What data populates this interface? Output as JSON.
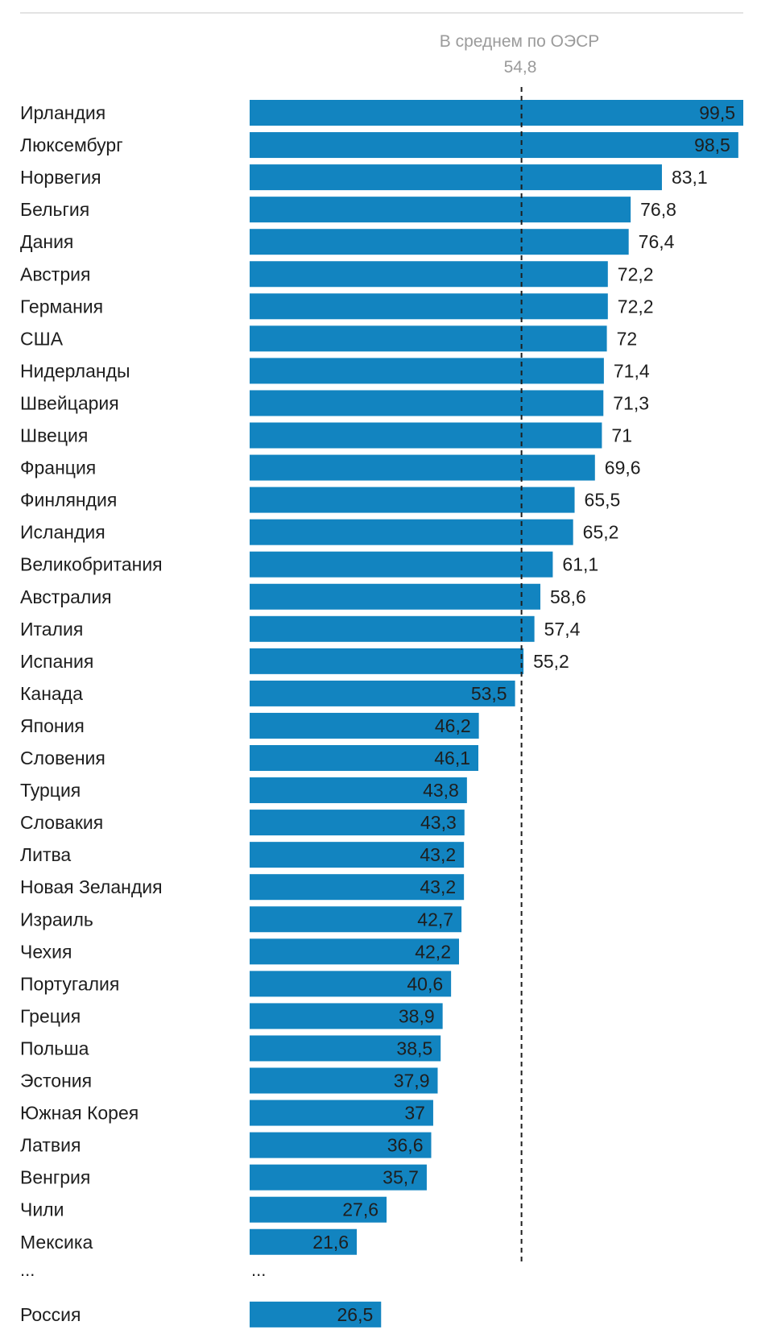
{
  "chart_data": {
    "type": "bar",
    "orientation": "horizontal",
    "title": "",
    "xlabel": "",
    "ylabel": "",
    "xlim": [
      0,
      99.5
    ],
    "grid": false,
    "bar_color": "#1284c0",
    "reference_line": {
      "label": "В среднем по ОЭСР",
      "value": 54.8,
      "value_label": "54,8",
      "style": "dashed"
    },
    "categories": [
      "Ирландия",
      "Люксембург",
      "Норвегия",
      "Бельгия",
      "Дания",
      "Австрия",
      "Германия",
      "США",
      "Нидерланды",
      "Швейцария",
      "Швеция",
      "Франция",
      "Финляндия",
      "Исландия",
      "Великобритания",
      "Австралия",
      "Италия",
      "Испания",
      "Канада",
      "Япония",
      "Словения",
      "Турция",
      "Словакия",
      "Литва",
      "Новая Зеландия",
      "Израиль",
      "Чехия",
      "Португалия",
      "Греция",
      "Польша",
      "Эстония",
      "Южная Корея",
      "Латвия",
      "Венгрия",
      "Чили",
      "Мексика"
    ],
    "values": [
      99.5,
      98.5,
      83.1,
      76.8,
      76.4,
      72.2,
      72.2,
      72,
      71.4,
      71.3,
      71,
      69.6,
      65.5,
      65.2,
      61.1,
      58.6,
      57.4,
      55.2,
      53.5,
      46.2,
      46.1,
      43.8,
      43.3,
      43.2,
      43.2,
      42.7,
      42.2,
      40.6,
      38.9,
      38.5,
      37.9,
      37,
      36.6,
      35.7,
      27.6,
      21.6
    ],
    "value_labels": [
      "99,5",
      "98,5",
      "83,1",
      "76,8",
      "76,4",
      "72,2",
      "72,2",
      "72",
      "71,4",
      "71,3",
      "71",
      "69,6",
      "65,5",
      "65,2",
      "61,1",
      "58,6",
      "57,4",
      "55,2",
      "53,5",
      "46,2",
      "46,1",
      "43,8",
      "43,3",
      "43,2",
      "43,2",
      "42,7",
      "42,2",
      "40,6",
      "38,9",
      "38,5",
      "37,9",
      "37",
      "36,6",
      "35,7",
      "27,6",
      "21,6"
    ],
    "ellipsis": "...",
    "extra": {
      "category": "Россия",
      "value": 26.5,
      "value_label": "26,5"
    }
  }
}
